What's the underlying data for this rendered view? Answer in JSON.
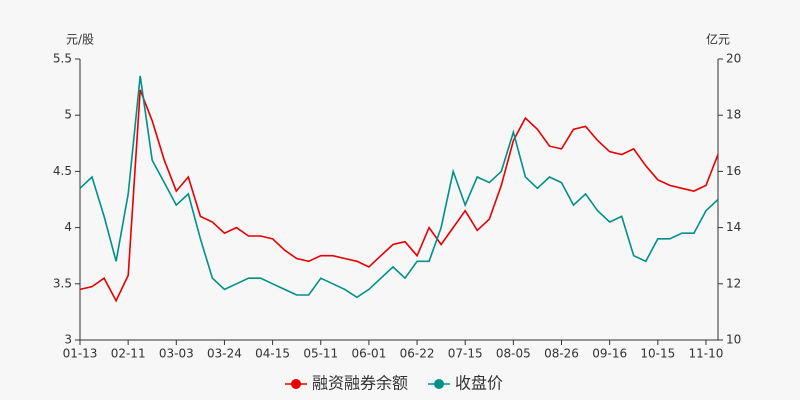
{
  "chart_data": {
    "type": "line",
    "y_label": "元/股",
    "y2_label": "亿元",
    "categories": [
      "01-13",
      null,
      null,
      null,
      "02-11",
      null,
      null,
      null,
      "03-03",
      null,
      null,
      null,
      "03-24",
      null,
      null,
      null,
      "04-15",
      null,
      null,
      null,
      "05-11",
      null,
      null,
      null,
      "06-01",
      null,
      null,
      null,
      "06-22",
      null,
      null,
      null,
      "07-15",
      null,
      null,
      null,
      "08-05",
      null,
      null,
      null,
      "08-26",
      null,
      null,
      null,
      "09-16",
      null,
      null,
      null,
      "10-15",
      null,
      null,
      null,
      "11-10",
      null
    ],
    "series": [
      {
        "name": "融资融券余额",
        "color": "#e60000",
        "axis": "y2",
        "values": [
          11.8,
          11.9,
          12.2,
          11.4,
          12.3,
          18.9,
          17.8,
          16.4,
          15.3,
          15.8,
          14.4,
          14.2,
          13.8,
          14.0,
          13.7,
          13.7,
          13.6,
          13.2,
          12.9,
          12.8,
          13.0,
          13.0,
          12.9,
          12.8,
          12.6,
          13.0,
          13.4,
          13.5,
          13.0,
          14.0,
          13.4,
          14.0,
          14.6,
          13.9,
          14.3,
          15.5,
          17.1,
          17.9,
          17.5,
          16.9,
          16.8,
          17.5,
          17.6,
          17.1,
          16.7,
          16.6,
          16.8,
          16.2,
          15.7,
          15.5,
          15.4,
          15.3,
          15.5,
          16.6
        ]
      },
      {
        "name": "收盘价",
        "color": "#009088",
        "values": [
          4.35,
          4.45,
          4.1,
          3.7,
          4.3,
          5.35,
          4.6,
          4.4,
          4.2,
          4.3,
          3.9,
          3.55,
          3.45,
          3.5,
          3.55,
          3.55,
          3.5,
          3.45,
          3.4,
          3.4,
          3.55,
          3.5,
          3.45,
          3.38,
          3.45,
          3.55,
          3.65,
          3.55,
          3.7,
          3.7,
          4.0,
          4.5,
          4.2,
          4.45,
          4.4,
          4.5,
          4.85,
          4.45,
          4.35,
          4.45,
          4.4,
          4.2,
          4.3,
          4.15,
          4.05,
          4.1,
          3.75,
          3.7,
          3.9,
          3.9,
          3.95,
          3.95,
          4.15,
          4.25
        ]
      }
    ],
    "ylim": [
      3,
      5.5
    ],
    "yticks": [
      3,
      3.5,
      4,
      4.5,
      5,
      5.5
    ],
    "y2lim": [
      10,
      20
    ],
    "y2ticks": [
      10,
      12,
      14,
      16,
      18,
      20
    ],
    "legend": "bottom"
  }
}
